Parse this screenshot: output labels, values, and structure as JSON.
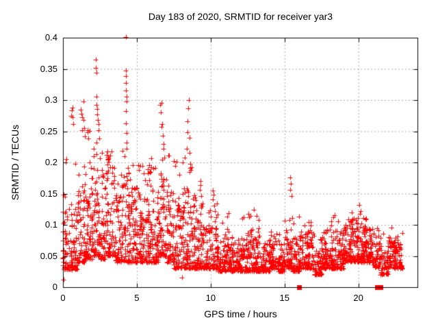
{
  "chart_data": {
    "type": "scatter",
    "title": "Day 183 of 2020, SRMTID for receiver yar3",
    "xlabel": "GPS time / hours",
    "ylabel": "SRMTID / TECUs",
    "xlim": [
      0,
      24
    ],
    "ylim": [
      0,
      0.4
    ],
    "xticks": [
      0,
      5,
      10,
      15,
      20
    ],
    "xtick_labels": [
      "0",
      "5",
      "10",
      "15",
      "20"
    ],
    "yticks": [
      0,
      0.05,
      0.1,
      0.15,
      0.2,
      0.25,
      0.3,
      0.35,
      0.4
    ],
    "ytick_labels": [
      "0",
      "0.05",
      "0.1",
      "0.15",
      "0.2",
      "0.25",
      "0.3",
      "0.35",
      "0.4"
    ],
    "grid": true,
    "legend": "none",
    "marker": "plus",
    "point_color": "#ff0000",
    "series_name": "SRMTID",
    "bins_note": "dense scatter summarized as half-hour bins [start_hour, n_points, bulk_low, bulk_high, tail_max]",
    "bins": [
      [
        0.0,
        60,
        0.028,
        0.125,
        0.21
      ],
      [
        0.5,
        60,
        0.028,
        0.125,
        0.2
      ],
      [
        1.0,
        65,
        0.04,
        0.185,
        0.26
      ],
      [
        1.5,
        65,
        0.045,
        0.2,
        0.26
      ],
      [
        2.0,
        65,
        0.05,
        0.215,
        0.25
      ],
      [
        2.5,
        60,
        0.045,
        0.185,
        0.22
      ],
      [
        3.0,
        65,
        0.05,
        0.21,
        0.22
      ],
      [
        3.5,
        60,
        0.04,
        0.15,
        0.19
      ],
      [
        4.0,
        65,
        0.04,
        0.2,
        0.22
      ],
      [
        4.5,
        60,
        0.04,
        0.16,
        0.2
      ],
      [
        5.0,
        60,
        0.04,
        0.19,
        0.2
      ],
      [
        5.5,
        60,
        0.04,
        0.185,
        0.21
      ],
      [
        6.0,
        60,
        0.04,
        0.16,
        0.2
      ],
      [
        6.5,
        65,
        0.05,
        0.2,
        0.22
      ],
      [
        7.0,
        60,
        0.04,
        0.17,
        0.22
      ],
      [
        7.5,
        60,
        0.03,
        0.15,
        0.21
      ],
      [
        8.0,
        65,
        0.03,
        0.17,
        0.21
      ],
      [
        8.5,
        60,
        0.03,
        0.15,
        0.2
      ],
      [
        9.0,
        60,
        0.03,
        0.13,
        0.15
      ],
      [
        9.5,
        55,
        0.03,
        0.1,
        0.13
      ],
      [
        10.0,
        55,
        0.03,
        0.12,
        0.135
      ],
      [
        10.5,
        50,
        0.025,
        0.08,
        0.11
      ],
      [
        11.0,
        55,
        0.025,
        0.095,
        0.125
      ],
      [
        11.5,
        50,
        0.025,
        0.07,
        0.09
      ],
      [
        12.0,
        50,
        0.025,
        0.08,
        0.115
      ],
      [
        12.5,
        55,
        0.025,
        0.095,
        0.125
      ],
      [
        13.0,
        55,
        0.025,
        0.09,
        0.115
      ],
      [
        13.5,
        50,
        0.025,
        0.07,
        0.095
      ],
      [
        14.0,
        55,
        0.03,
        0.085,
        0.105
      ],
      [
        14.5,
        50,
        0.025,
        0.07,
        0.09
      ],
      [
        15.0,
        55,
        0.03,
        0.095,
        0.14
      ],
      [
        15.5,
        50,
        0.025,
        0.08,
        0.12
      ],
      [
        16.0,
        55,
        0.03,
        0.09,
        0.12
      ],
      [
        16.5,
        55,
        0.03,
        0.1,
        0.115
      ],
      [
        17.0,
        50,
        0.02,
        0.06,
        0.08
      ],
      [
        17.5,
        55,
        0.03,
        0.09,
        0.11
      ],
      [
        18.0,
        60,
        0.03,
        0.1,
        0.12
      ],
      [
        18.5,
        55,
        0.03,
        0.09,
        0.11
      ],
      [
        19.0,
        60,
        0.04,
        0.1,
        0.11
      ],
      [
        19.5,
        60,
        0.04,
        0.11,
        0.125
      ],
      [
        20.0,
        60,
        0.04,
        0.11,
        0.125
      ],
      [
        20.5,
        60,
        0.04,
        0.1,
        0.11
      ],
      [
        21.0,
        50,
        0.03,
        0.09,
        0.105
      ],
      [
        21.5,
        45,
        0.02,
        0.07,
        0.09
      ],
      [
        22.0,
        60,
        0.03,
        0.08,
        0.1
      ],
      [
        22.5,
        55,
        0.03,
        0.08,
        0.09
      ]
    ],
    "spike_points": [
      [
        0.03,
        0.012
      ],
      [
        8.08,
        0.015
      ],
      [
        0.55,
        0.275
      ],
      [
        0.6,
        0.283
      ],
      [
        0.63,
        0.288
      ],
      [
        0.66,
        0.272
      ],
      [
        0.7,
        0.262
      ],
      [
        0.2,
        0.2
      ],
      [
        0.25,
        0.205
      ],
      [
        1.22,
        0.285
      ],
      [
        1.27,
        0.278
      ],
      [
        1.32,
        0.272
      ],
      [
        1.38,
        0.298
      ],
      [
        1.4,
        0.268
      ],
      [
        1.45,
        0.255
      ],
      [
        1.5,
        0.242
      ],
      [
        1.65,
        0.252
      ],
      [
        1.72,
        0.238
      ],
      [
        2.22,
        0.365
      ],
      [
        2.24,
        0.352
      ],
      [
        2.25,
        0.344
      ],
      [
        2.26,
        0.306
      ],
      [
        2.28,
        0.292
      ],
      [
        2.3,
        0.286
      ],
      [
        2.33,
        0.277
      ],
      [
        2.36,
        0.268
      ],
      [
        2.4,
        0.262
      ],
      [
        2.43,
        0.252
      ],
      [
        2.46,
        0.238
      ],
      [
        2.95,
        0.212
      ],
      [
        3.02,
        0.218
      ],
      [
        3.08,
        0.206
      ],
      [
        4.26,
        0.401
      ],
      [
        4.27,
        0.347
      ],
      [
        4.28,
        0.338
      ],
      [
        4.25,
        0.327
      ],
      [
        4.27,
        0.315
      ],
      [
        4.29,
        0.305
      ],
      [
        4.3,
        0.298
      ],
      [
        4.27,
        0.282
      ],
      [
        4.28,
        0.263
      ],
      [
        4.31,
        0.247
      ],
      [
        4.29,
        0.232
      ],
      [
        4.33,
        0.222
      ],
      [
        5.08,
        0.196
      ],
      [
        5.15,
        0.188
      ],
      [
        5.82,
        0.196
      ],
      [
        5.9,
        0.186
      ],
      [
        5.97,
        0.192
      ],
      [
        6.58,
        0.292
      ],
      [
        6.62,
        0.28
      ],
      [
        6.65,
        0.257
      ],
      [
        6.69,
        0.296
      ],
      [
        6.72,
        0.262
      ],
      [
        6.75,
        0.243
      ],
      [
        6.79,
        0.23
      ],
      [
        6.83,
        0.222
      ],
      [
        7.58,
        0.194
      ],
      [
        7.68,
        0.201
      ],
      [
        8.38,
        0.222
      ],
      [
        8.42,
        0.248
      ],
      [
        8.45,
        0.266
      ],
      [
        8.5,
        0.287
      ],
      [
        8.52,
        0.3
      ],
      [
        8.55,
        0.24
      ],
      [
        8.58,
        0.215
      ],
      [
        8.62,
        0.198
      ],
      [
        8.66,
        0.188
      ],
      [
        8.7,
        0.192
      ],
      [
        9.28,
        0.156
      ],
      [
        9.3,
        0.17
      ],
      [
        9.32,
        0.164
      ],
      [
        9.34,
        0.146
      ],
      [
        10.13,
        0.141
      ],
      [
        10.15,
        0.155
      ],
      [
        10.18,
        0.148
      ],
      [
        10.22,
        0.131
      ],
      [
        12.55,
        0.118
      ],
      [
        12.62,
        0.112
      ],
      [
        13.25,
        0.108
      ],
      [
        15.38,
        0.156
      ],
      [
        15.4,
        0.176
      ],
      [
        15.44,
        0.166
      ],
      [
        15.47,
        0.146
      ],
      [
        18.4,
        0.115
      ],
      [
        20.08,
        0.132
      ],
      [
        20.12,
        0.118
      ]
    ],
    "zero_square_points_x": [
      16.0,
      21.25,
      21.5
    ]
  }
}
